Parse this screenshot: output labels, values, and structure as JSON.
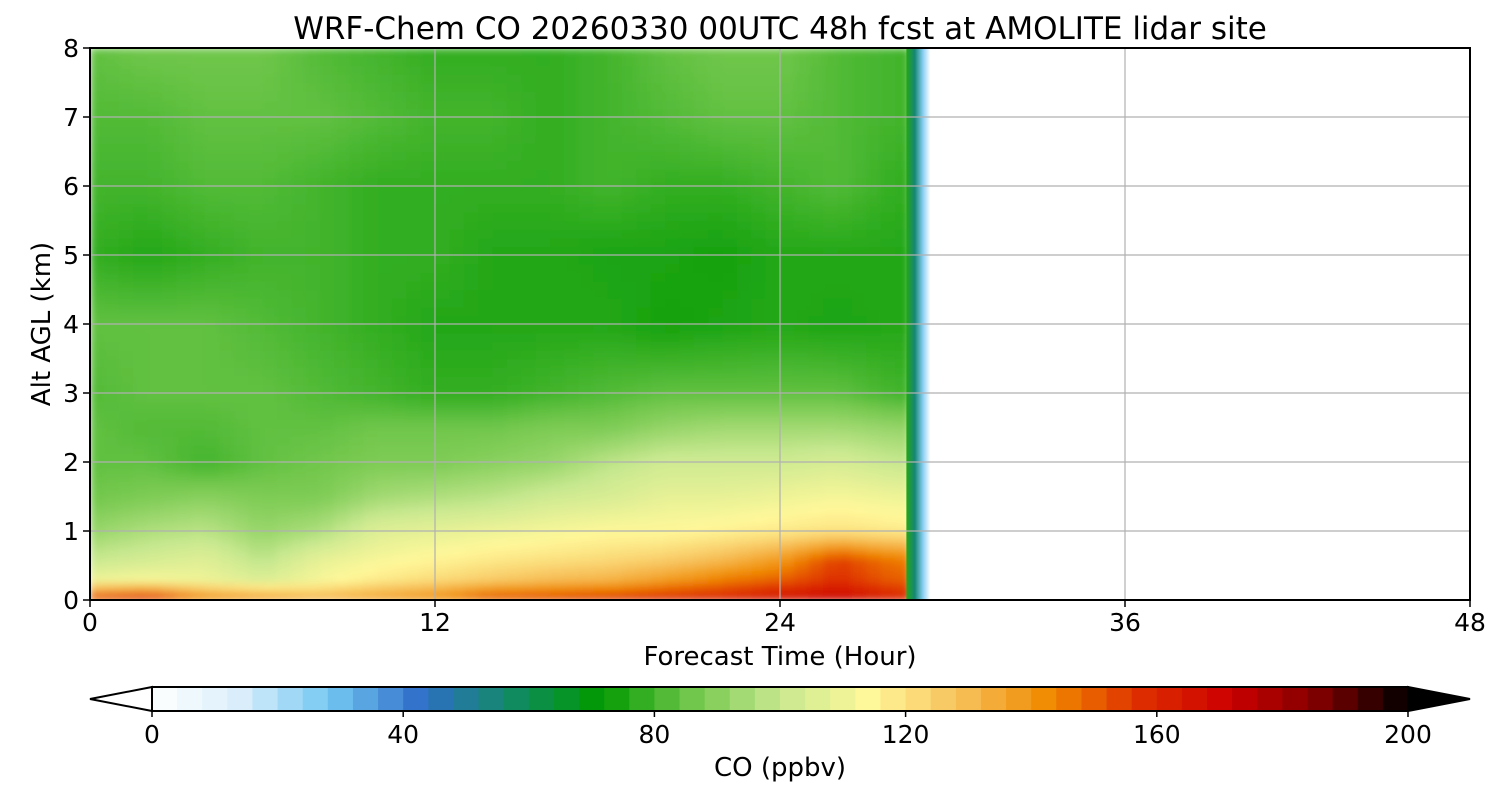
{
  "chart_data": {
    "type": "heatmap",
    "title": "WRF-Chem CO  20260330 00UTC 48h fcst at AMOLITE lidar site",
    "xlabel": "Forecast Time (Hour)",
    "ylabel": "Alt AGL (km)",
    "xlim": [
      0,
      48
    ],
    "ylim": [
      0,
      8
    ],
    "x_ticks": [
      "0",
      "12",
      "24",
      "36",
      "48"
    ],
    "y_ticks": [
      "0",
      "1",
      "2",
      "3",
      "4",
      "5",
      "6",
      "7",
      "8"
    ],
    "grid": true,
    "data_end_hour": 28.5,
    "x": [
      0,
      2,
      4,
      6,
      8,
      10,
      12,
      14,
      16,
      18,
      20,
      22,
      24,
      26,
      28
    ],
    "y": [
      0.05,
      0.3,
      0.6,
      1.0,
      1.5,
      2.0,
      2.5,
      3.0,
      4.0,
      5.0,
      6.0,
      7.0,
      8.0
    ],
    "z": [
      [
        150,
        155,
        140,
        135,
        130,
        135,
        140,
        150,
        152,
        155,
        158,
        160,
        165,
        170,
        160
      ],
      [
        110,
        112,
        110,
        105,
        112,
        118,
        122,
        126,
        130,
        132,
        138,
        145,
        150,
        158,
        150
      ],
      [
        100,
        103,
        106,
        98,
        108,
        112,
        115,
        118,
        120,
        122,
        125,
        130,
        138,
        155,
        145
      ],
      [
        92,
        96,
        98,
        92,
        96,
        106,
        108,
        110,
        112,
        114,
        114,
        116,
        118,
        120,
        118
      ],
      [
        86,
        88,
        90,
        88,
        88,
        94,
        96,
        98,
        102,
        104,
        108,
        108,
        110,
        112,
        110
      ],
      [
        84,
        84,
        80,
        84,
        86,
        88,
        88,
        90,
        92,
        98,
        102,
        102,
        102,
        104,
        100
      ],
      [
        84,
        82,
        82,
        84,
        84,
        86,
        86,
        86,
        88,
        88,
        92,
        94,
        94,
        94,
        92
      ],
      [
        82,
        84,
        84,
        84,
        82,
        80,
        78,
        78,
        80,
        82,
        84,
        84,
        84,
        84,
        80
      ],
      [
        84,
        84,
        84,
        82,
        80,
        78,
        76,
        76,
        76,
        76,
        74,
        75,
        76,
        75,
        76
      ],
      [
        78,
        76,
        78,
        80,
        80,
        78,
        78,
        76,
        76,
        75,
        75,
        74,
        76,
        76,
        76
      ],
      [
        80,
        80,
        82,
        82,
        80,
        78,
        78,
        78,
        78,
        80,
        78,
        78,
        80,
        82,
        78
      ],
      [
        82,
        82,
        84,
        84,
        84,
        82,
        80,
        80,
        78,
        80,
        82,
        84,
        84,
        82,
        80
      ],
      [
        84,
        86,
        86,
        86,
        82,
        80,
        78,
        78,
        78,
        80,
        84,
        86,
        86,
        82,
        80
      ]
    ],
    "colorbar": {
      "label": "CO  (ppbv)",
      "min": 0,
      "max": 200,
      "ticks": [
        "0",
        "40",
        "80",
        "120",
        "160",
        "200"
      ],
      "extend": "both",
      "colormap": [
        "#ffffff",
        "#d8eefa",
        "#72c6f2",
        "#2f6ec8",
        "#118a66",
        "#009900",
        "#6fc64a",
        "#c8e890",
        "#fff89a",
        "#f7c05a",
        "#f08a00",
        "#de3000",
        "#cc0000",
        "#800000",
        "#000000"
      ]
    }
  }
}
